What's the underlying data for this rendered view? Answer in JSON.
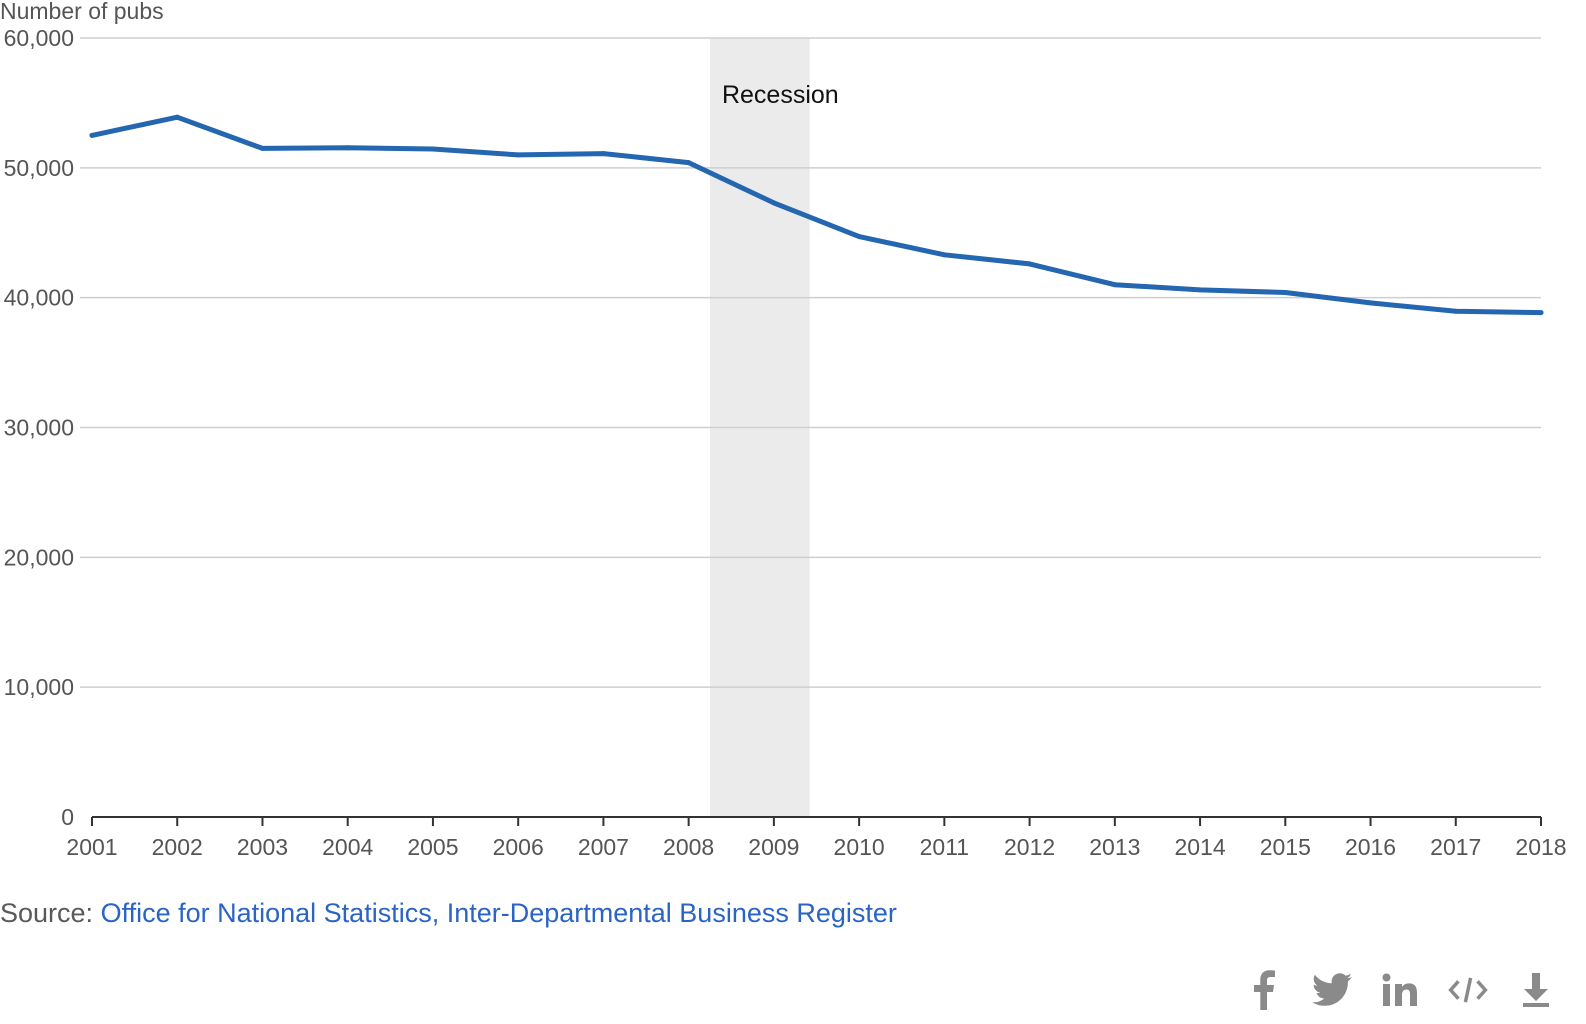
{
  "chart_data": {
    "type": "line",
    "ylabel": "Number of pubs",
    "ylim": [
      0,
      60000
    ],
    "yticks": [
      0,
      10000,
      20000,
      30000,
      40000,
      50000,
      60000
    ],
    "ytick_labels": [
      "0",
      "10,000",
      "20,000",
      "30,000",
      "40,000",
      "50,000",
      "60,000"
    ],
    "x": [
      2001,
      2002,
      2003,
      2004,
      2005,
      2006,
      2007,
      2008,
      2009,
      2010,
      2011,
      2012,
      2013,
      2014,
      2015,
      2016,
      2017,
      2018
    ],
    "xtick_labels": [
      "2001",
      "2002",
      "2003",
      "2004",
      "2005",
      "2006",
      "2007",
      "2008",
      "2009",
      "2010",
      "2011",
      "2012",
      "2013",
      "2014",
      "2015",
      "2016",
      "2017",
      "2018"
    ],
    "series": [
      {
        "values": [
          52500,
          53900,
          51500,
          51550,
          51450,
          51000,
          51100,
          50400,
          47300,
          44700,
          43300,
          42600,
          41000,
          40600,
          40400,
          39600,
          38950,
          38850
        ]
      }
    ],
    "shaded_region": {
      "x_start": 2008.25,
      "x_end": 2009.42,
      "label": "Recession"
    },
    "grid": true,
    "line_color": "#2566b0",
    "band_color": "#ebebeb"
  },
  "source": {
    "prefix": "Source: ",
    "link_text": "Office for National Statistics, Inter-Departmental Business Register",
    "link_color": "#2a64c5"
  },
  "share": {
    "icons": [
      "facebook-icon",
      "twitter-icon",
      "linkedin-icon",
      "embed-icon",
      "download-icon"
    ]
  }
}
